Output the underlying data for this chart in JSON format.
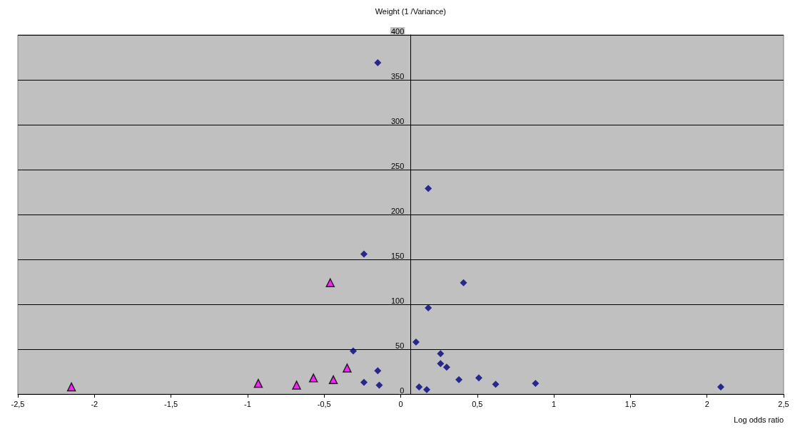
{
  "chart_data": {
    "type": "scatter",
    "xlabel": "Log odds ratio",
    "ylabel": "Weight (1 /Variance)",
    "xlim": [
      -2.5,
      2.5
    ],
    "xticks": [
      {
        "value": -2.5,
        "label": "-2,5"
      },
      -2,
      {
        "value": -1.5,
        "label": "-1,5"
      },
      -1,
      {
        "value": -0.5,
        "label": "-0,5"
      },
      0,
      {
        "value": 0.5,
        "label": "0,5"
      },
      1,
      {
        "value": 1.5,
        "label": "1,5"
      },
      2,
      {
        "value": 2.5,
        "label": "2,5"
      }
    ],
    "ylim": [
      0,
      400
    ],
    "yticks": [
      0,
      50,
      100,
      150,
      200,
      250,
      300,
      350,
      400
    ],
    "grid": "y",
    "series": [
      {
        "color": "#000080",
        "marker": "diamond",
        "x": [
          -0.15,
          0.18,
          -0.24,
          0.41,
          0.18,
          0.1,
          -0.31,
          0.26,
          0.26,
          0.3,
          -0.15,
          -0.24,
          -0.14,
          0.12,
          0.17,
          0.38,
          0.51,
          0.62,
          0.88,
          2.09
        ],
        "values": [
          369,
          229,
          156,
          124,
          96,
          58,
          48,
          45,
          34,
          30,
          26,
          13,
          10,
          8,
          5,
          16,
          18,
          11,
          12,
          8
        ]
      },
      {
        "color": "#ff00ff",
        "marker": "triangle",
        "x": [
          -2.15,
          -0.93,
          -0.68,
          -0.57,
          -0.44,
          -0.46,
          -0.35
        ],
        "values": [
          8,
          12,
          10,
          18,
          16,
          124,
          29
        ]
      }
    ]
  }
}
